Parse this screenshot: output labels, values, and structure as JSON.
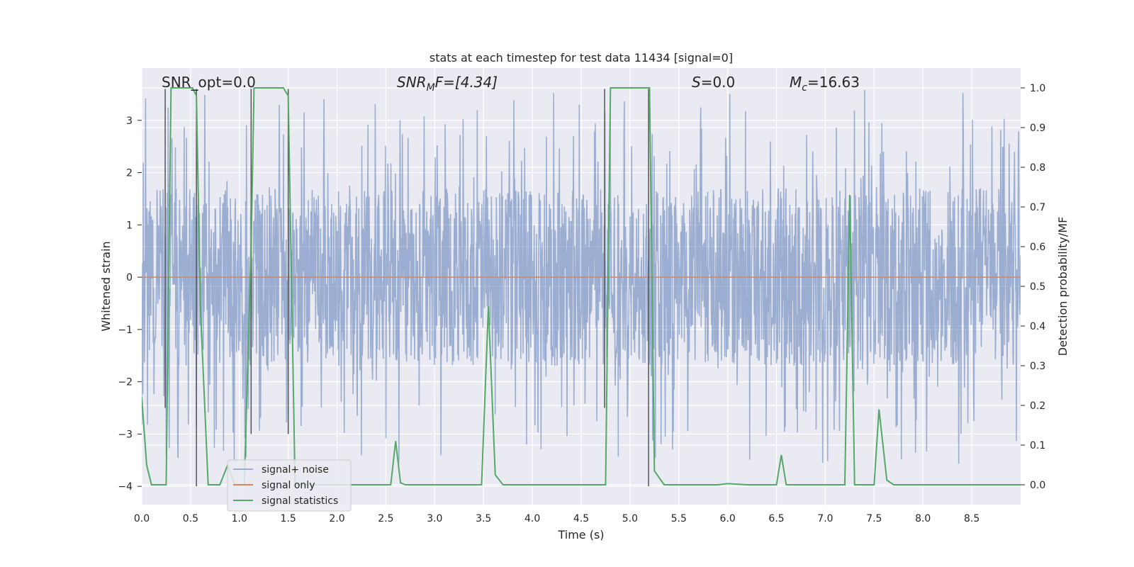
{
  "chart_data": {
    "type": "line",
    "title": "stats at each timestep for test data 11434 [signal=0]",
    "xlabel": "Time (s)",
    "ylabel": "Whitened strain",
    "ylabel_right": "Detection probability/MF",
    "xlim": [
      0.0,
      9.0
    ],
    "ylim": [
      -4.35,
      4.0
    ],
    "ylim_right": [
      -0.05,
      1.05
    ],
    "xticks": [
      "0.0",
      "0.5",
      "1.0",
      "1.5",
      "2.0",
      "2.5",
      "3.0",
      "3.5",
      "4.0",
      "4.5",
      "5.0",
      "5.5",
      "6.0",
      "6.5",
      "7.0",
      "7.5",
      "8.0",
      "8.5"
    ],
    "yticks": [
      "3",
      "2",
      "1",
      "0",
      "−1",
      "−2",
      "−3",
      "−4"
    ],
    "yticks_right": [
      "1.0",
      "0.9",
      "0.8",
      "0.7",
      "0.6",
      "0.5",
      "0.4",
      "0.3",
      "0.2",
      "0.1",
      "0.0"
    ],
    "grid": true,
    "legend_position": "lower-left",
    "annotations": {
      "snr_opt": "SNR_opt=0.0",
      "snr_mf_base": "SNR",
      "snr_mf_sub": "M",
      "snr_mf_rest": "F=[4.34]",
      "s_var": "S",
      "s_rest": "=0.0",
      "mc_var": "M",
      "mc_sub": "c",
      "mc_rest": "=16.63"
    },
    "series": [
      {
        "name": "signal+ noise",
        "color": "#4c72b0",
        "axis": "left",
        "noise_band": {
          "typical_range": [
            -1.7,
            1.7
          ],
          "peak_range": [
            -3.6,
            3.6
          ]
        }
      },
      {
        "name": "signal only",
        "color": "#dd8452",
        "axis": "left",
        "x": [
          0.0,
          9.0
        ],
        "y": [
          0.0,
          0.0
        ]
      },
      {
        "name": "signal statistics",
        "color": "#55a868",
        "axis": "right",
        "x": [
          0.0,
          0.05,
          0.1,
          0.18,
          0.25,
          0.3,
          0.35,
          0.45,
          0.52,
          0.56,
          0.6,
          0.68,
          0.8,
          0.88,
          0.95,
          1.05,
          1.12,
          1.15,
          1.2,
          1.3,
          1.45,
          1.5,
          1.57,
          1.65,
          1.8,
          2.0,
          2.3,
          2.55,
          2.6,
          2.65,
          2.7,
          3.0,
          3.3,
          3.48,
          3.55,
          3.62,
          3.7,
          4.0,
          4.7,
          4.75,
          4.8,
          5.0,
          5.2,
          5.25,
          5.35,
          5.6,
          5.9,
          6.0,
          6.2,
          6.5,
          6.55,
          6.6,
          7.0,
          7.2,
          7.25,
          7.3,
          7.5,
          7.55,
          7.63,
          7.7,
          8.0,
          9.0
        ],
        "y": [
          0.22,
          0.05,
          0.0,
          0.0,
          0.0,
          1.0,
          1.0,
          1.0,
          1.0,
          0.98,
          0.45,
          0.0,
          0.0,
          0.05,
          0.0,
          0.0,
          0.6,
          1.0,
          1.0,
          1.0,
          1.0,
          0.98,
          0.0,
          0.0,
          0.0,
          0.0,
          0.0,
          0.0,
          0.11,
          0.005,
          0.0,
          0.0,
          0.0,
          0.0,
          0.45,
          0.025,
          0.0,
          0.0,
          0.0,
          0.0,
          1.0,
          1.0,
          1.0,
          0.035,
          0.0,
          0.0,
          0.0,
          0.003,
          0.0,
          0.0,
          0.075,
          0.0,
          0.0,
          0.0,
          0.73,
          0.0,
          0.0,
          0.19,
          0.012,
          0.0,
          0.0,
          0.0
        ]
      }
    ],
    "marker_lines": [
      {
        "x": 0.24,
        "y_range": [
          -2.5,
          3.6
        ]
      },
      {
        "x": 0.56,
        "y_range": [
          -4.0,
          3.6
        ]
      },
      {
        "x": 1.12,
        "y_range": [
          -3.0,
          3.6
        ]
      },
      {
        "x": 1.5,
        "y_range": [
          -3.0,
          3.6
        ]
      },
      {
        "x": 4.74,
        "y_range": [
          -2.5,
          3.6
        ]
      },
      {
        "x": 5.19,
        "y_range": [
          -4.0,
          3.6
        ]
      }
    ]
  }
}
